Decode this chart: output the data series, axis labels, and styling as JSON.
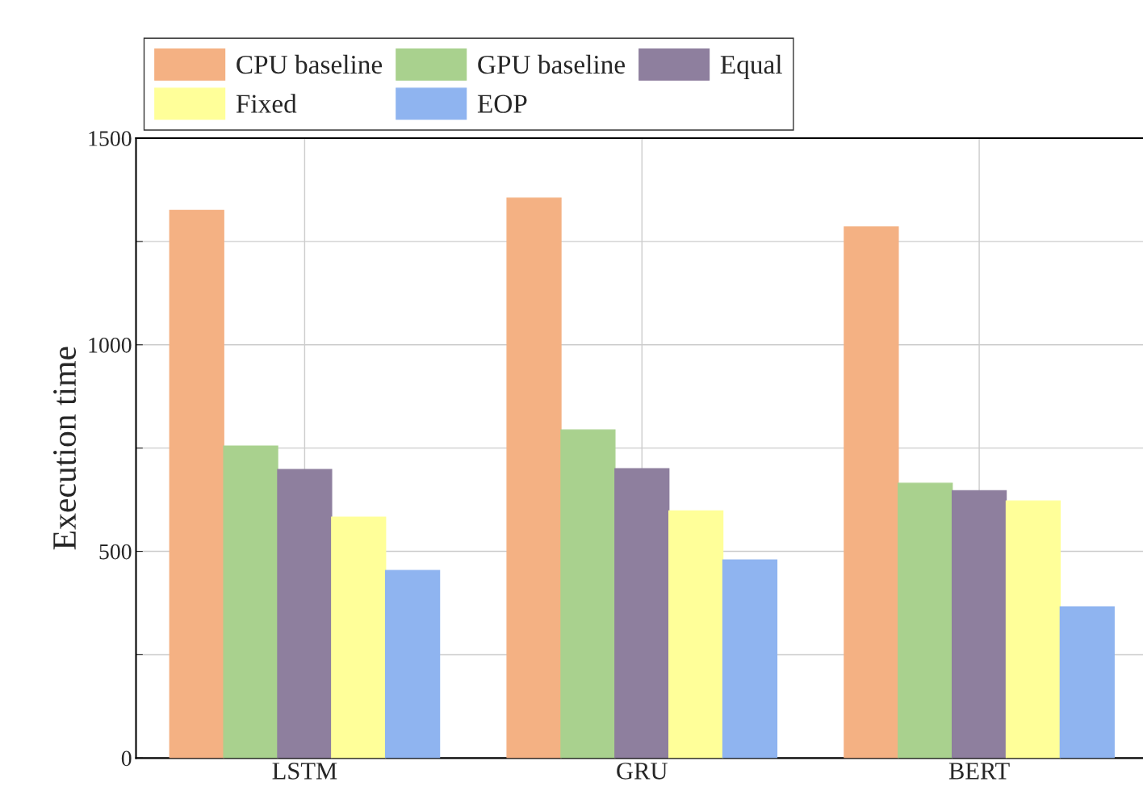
{
  "chart_data": {
    "type": "bar",
    "ylabel": "Execution time",
    "categories": [
      "LSTM",
      "GRU",
      "BERT"
    ],
    "series": [
      {
        "name": "CPU baseline",
        "color": "#f4b183",
        "values": [
          1325,
          1355,
          1285
        ]
      },
      {
        "name": "GPU baseline",
        "color": "#a9d18e",
        "values": [
          755,
          794,
          665
        ]
      },
      {
        "name": "Equal",
        "color": "#8e7f9e",
        "values": [
          698,
          700,
          647
        ]
      },
      {
        "name": "Fixed",
        "color": "#ffff99",
        "values": [
          583,
          598,
          622
        ]
      },
      {
        "name": "EOP",
        "color": "#8fb4f0",
        "values": [
          454,
          479,
          366
        ]
      }
    ],
    "ylim": [
      0,
      1500
    ],
    "yticks": [
      0,
      {
        "value": 250,
        "label": null
      },
      500,
      {
        "value": 750,
        "label": null
      },
      1000,
      {
        "value": 1250,
        "label": null
      },
      1500
    ],
    "grid": true,
    "legend": "top left"
  }
}
